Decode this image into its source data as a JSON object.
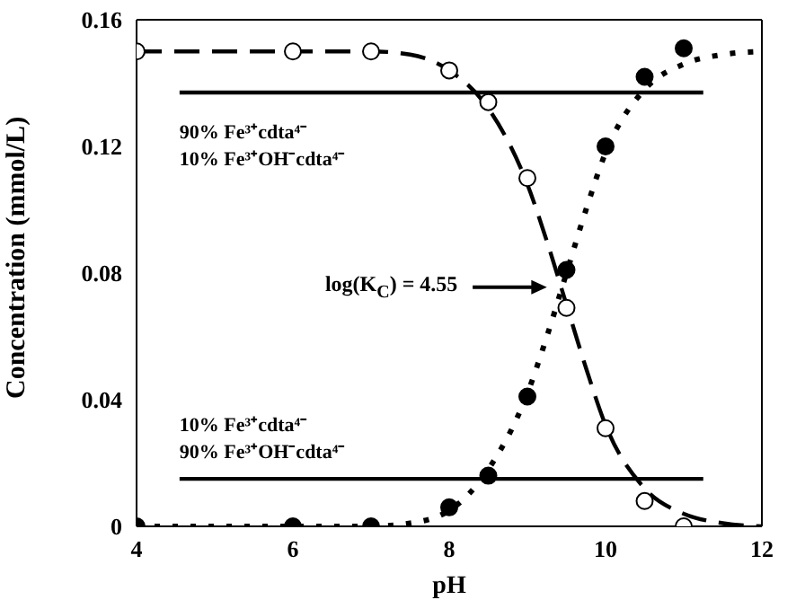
{
  "chart_data": {
    "type": "scatter",
    "xlabel": "pH",
    "ylabel": "Concentration (mmol/L)",
    "xlim": [
      4,
      12
    ],
    "xticks": [
      4,
      6,
      8,
      10,
      12
    ],
    "ylim": [
      0,
      0.16
    ],
    "yticks": [
      0,
      0.04,
      0.08,
      0.12,
      0.16
    ],
    "series": [
      {
        "type": "line",
        "line_style": "solid",
        "color": "#000000",
        "x": [
          4.55,
          11.25
        ],
        "values": [
          0.137,
          0.137
        ]
      },
      {
        "type": "line",
        "line_style": "solid",
        "color": "#000000",
        "x": [
          4.55,
          11.25
        ],
        "values": [
          0.015,
          0.015
        ]
      },
      {
        "type": "line",
        "line_style": "dashed",
        "color": "#000000",
        "x": [
          4,
          7,
          7.5,
          8,
          8.5,
          9,
          9.25,
          9.5,
          9.75,
          10,
          10.5,
          11,
          11.5,
          12
        ],
        "values": [
          0.15,
          0.15,
          0.149,
          0.144,
          0.132,
          0.108,
          0.09,
          0.07,
          0.05,
          0.032,
          0.012,
          0.004,
          0.001,
          0
        ]
      },
      {
        "type": "line",
        "line_style": "dotted",
        "color": "#000000",
        "x": [
          4,
          7,
          7.5,
          8,
          8.5,
          9,
          9.25,
          9.5,
          9.75,
          10,
          10.5,
          11,
          11.5,
          12
        ],
        "values": [
          0,
          0,
          0.001,
          0.005,
          0.018,
          0.042,
          0.06,
          0.08,
          0.1,
          0.118,
          0.138,
          0.146,
          0.149,
          0.15
        ]
      },
      {
        "marker": "circle",
        "color": "#ffffff",
        "x": [
          4,
          6,
          7,
          8,
          8.5,
          9,
          9.5,
          10,
          10.5,
          11
        ],
        "values": [
          0.15,
          0.15,
          0.15,
          0.144,
          0.134,
          0.11,
          0.069,
          0.031,
          0.008,
          0
        ]
      },
      {
        "marker": "circle",
        "color": "#000000",
        "x": [
          4,
          6,
          7,
          8,
          8.5,
          9,
          9.5,
          10,
          10.5,
          11
        ],
        "values": [
          0,
          0,
          0,
          0.006,
          0.016,
          0.041,
          0.081,
          0.12,
          0.142,
          0.151
        ]
      }
    ],
    "annotations": [
      "90% Fe³⁺cdta⁴⁻\n10% Fe³⁺OH⁻cdta⁴⁻",
      "10% Fe³⁺cdta⁴⁻\n90% Fe³⁺OH⁻cdta⁴⁻",
      "log(K$_{C}$) = 4.55"
    ]
  }
}
